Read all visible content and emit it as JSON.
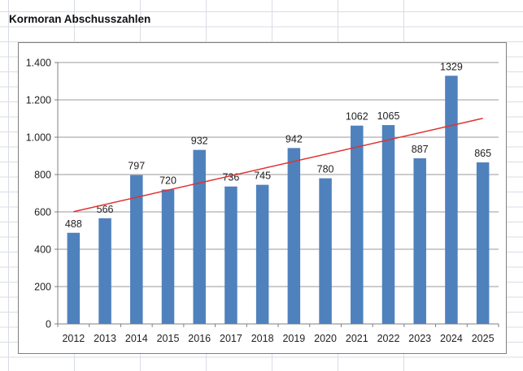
{
  "sheet": {
    "note": ""
  },
  "colors": {
    "sheet_gridline": "#d8dde4",
    "chart_border": "#7f7f7f",
    "chart_background": "#ffffff",
    "plot_gridline": "#9a9a9a",
    "axis": "#808080",
    "label_text": "#1f1f1f"
  },
  "chart_data": {
    "type": "bar",
    "title": "Kormoran Abschusszahlen",
    "categories": [
      "2012",
      "2013",
      "2014",
      "2015",
      "2016",
      "2017",
      "2018",
      "2019",
      "2020",
      "2021",
      "2022",
      "2023",
      "2024",
      "2025"
    ],
    "values": [
      488,
      566,
      797,
      720,
      932,
      736,
      745,
      942,
      780,
      1062,
      1065,
      887,
      1329,
      865
    ],
    "data_labels": [
      "488",
      "566",
      "797",
      "720",
      "932",
      "736",
      "745",
      "942",
      "780",
      "1062",
      "1065",
      "887",
      "1329",
      "865"
    ],
    "xlabel": "",
    "ylabel": "",
    "ylim": [
      0,
      1400
    ],
    "ytick_step": 200,
    "ytick_labels": [
      "0",
      "200",
      "400",
      "600",
      "800",
      "1.000",
      "1.200",
      "1.400"
    ],
    "grid": true,
    "legend": "none",
    "bar_color": "#4f81bd",
    "trendline": {
      "type": "linear",
      "start_value": 601,
      "end_value": 1101,
      "color": "#e03131"
    }
  }
}
